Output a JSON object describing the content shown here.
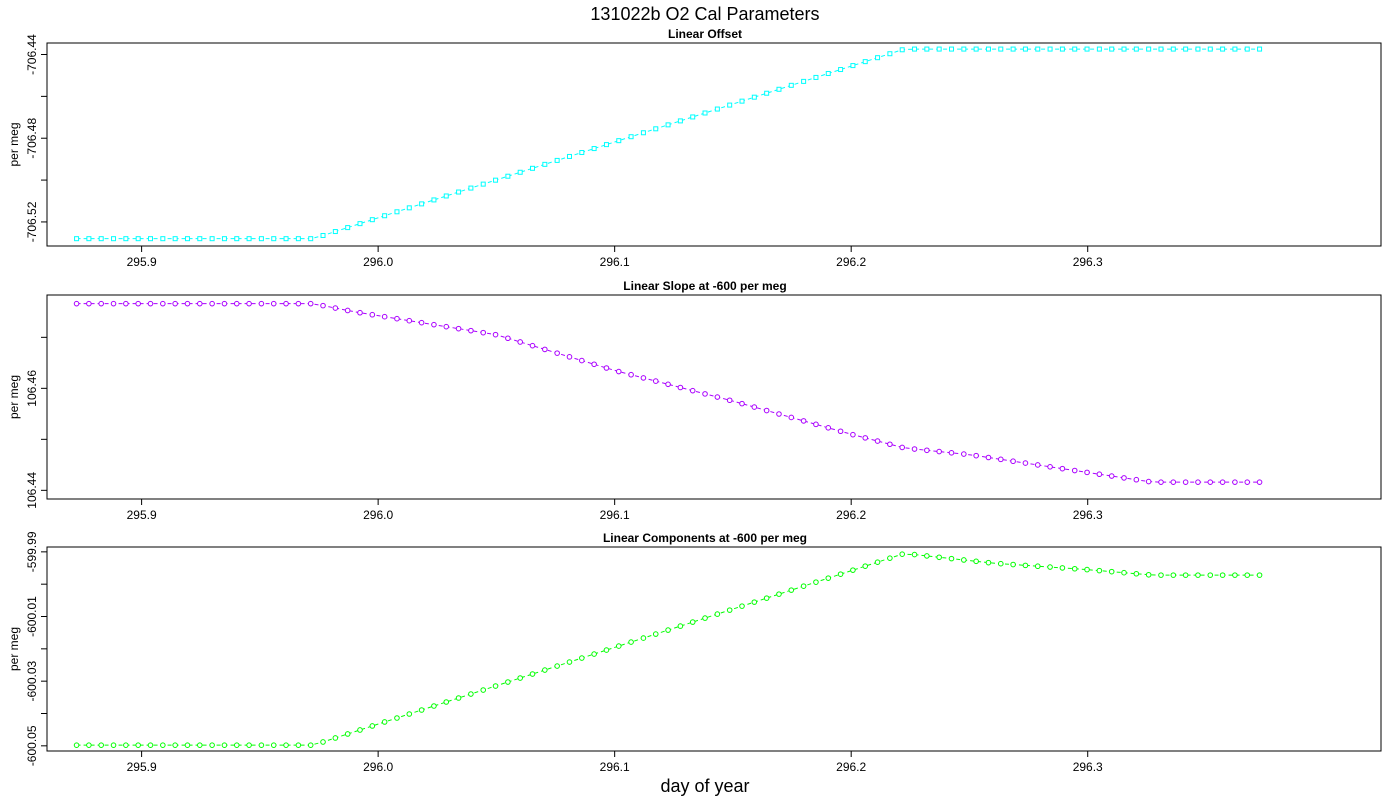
{
  "title": "131022b   O2 Cal Parameters",
  "xlabel": "day of year",
  "chart_data": [
    {
      "type": "line",
      "title": "Linear Offset",
      "ylabel": "per meg",
      "color": "#00ffff",
      "marker": "square",
      "x_ticks": [
        295.9,
        296.0,
        296.1,
        296.2,
        296.3
      ],
      "x_tick_labels": [
        "295.9",
        "296.0",
        "296.1",
        "296.2",
        "296.3"
      ],
      "y_ticks": [
        -706.52,
        -706.48,
        -706.44
      ],
      "y_tick_labels": [
        "-706.52",
        "-706.48",
        "-706.44"
      ],
      "y_minor_ticks": [
        -706.5,
        -706.46
      ],
      "xlim": [
        295.86,
        296.424
      ],
      "ylim": [
        -706.5315,
        -706.4345
      ],
      "x_start": 295.8725,
      "x_step": 0.00521,
      "n_points": 97,
      "knots": [
        {
          "x": 295.8725,
          "y": -706.528
        },
        {
          "x": 295.9725,
          "y": -706.528
        },
        {
          "x": 296.2225,
          "y": -706.4374
        },
        {
          "x": 296.3725,
          "y": -706.4374
        }
      ]
    },
    {
      "type": "line",
      "title": "Linear Slope at -600 per meg",
      "ylabel": "per meg",
      "color": "#aa00ff",
      "marker": "circle",
      "x_ticks": [
        295.9,
        296.0,
        296.1,
        296.2,
        296.3
      ],
      "x_tick_labels": [
        "295.9",
        "296.0",
        "296.1",
        "296.2",
        "296.3"
      ],
      "y_ticks": [
        106.44,
        106.46
      ],
      "y_tick_labels": [
        "106.44",
        "106.46"
      ],
      "y_minor_ticks": [
        106.45,
        106.47
      ],
      "xlim": [
        295.86,
        296.424
      ],
      "ylim": [
        106.4383,
        106.4783
      ],
      "x_start": 295.8725,
      "x_step": 0.00521,
      "n_points": 97,
      "knots": [
        {
          "x": 295.8725,
          "y": 106.4766
        },
        {
          "x": 295.9725,
          "y": 106.4766
        },
        {
          "x": 295.99,
          "y": 106.475
        },
        {
          "x": 296.05,
          "y": 106.4705
        },
        {
          "x": 296.1,
          "y": 106.4635
        },
        {
          "x": 296.15,
          "y": 106.4575
        },
        {
          "x": 296.2,
          "y": 106.451
        },
        {
          "x": 296.2225,
          "y": 106.4483
        },
        {
          "x": 296.25,
          "y": 106.447
        },
        {
          "x": 296.3,
          "y": 106.4435
        },
        {
          "x": 296.3275,
          "y": 106.4416
        },
        {
          "x": 296.3725,
          "y": 106.4416
        }
      ]
    },
    {
      "type": "line",
      "title": "Linear Components at -600 per meg",
      "ylabel": "per meg",
      "color": "#00ff00",
      "marker": "circle",
      "x_ticks": [
        295.9,
        296.0,
        296.1,
        296.2,
        296.3
      ],
      "x_tick_labels": [
        "295.9",
        "296.0",
        "296.1",
        "296.2",
        "296.3"
      ],
      "y_ticks": [
        -600.05,
        -600.03,
        -600.01,
        -599.99
      ],
      "y_tick_labels": [
        "-600.05",
        "-600.03",
        "-600.01",
        "-599.99"
      ],
      "y_minor_ticks": [
        -600.04,
        -600.02,
        -600.0
      ],
      "xlim": [
        295.86,
        296.424
      ],
      "ylim": [
        -600.0516,
        -599.9885
      ],
      "x_start": 295.8725,
      "x_step": 0.00521,
      "n_points": 97,
      "knots": [
        {
          "x": 295.8725,
          "y": -600.0498
        },
        {
          "x": 295.9725,
          "y": -600.0498
        },
        {
          "x": 296.2225,
          "y": -599.9905
        },
        {
          "x": 296.26,
          "y": -599.9935
        },
        {
          "x": 296.3,
          "y": -599.9955
        },
        {
          "x": 296.3275,
          "y": -599.9972
        },
        {
          "x": 296.3725,
          "y": -599.9972
        }
      ]
    }
  ]
}
